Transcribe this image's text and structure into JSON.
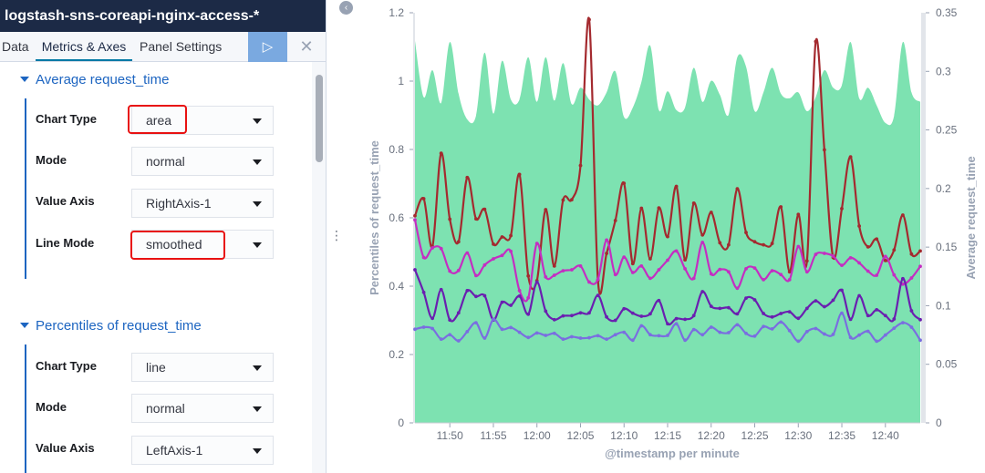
{
  "header": {
    "index_pattern": "logstash-sns-coreapi-nginx-access-*"
  },
  "tabs": {
    "data": "Data",
    "metrics_axes": "Metrics & Axes",
    "panel_settings": "Panel Settings"
  },
  "toolbar": {
    "apply_icon": "play-icon",
    "discard_icon": "close-icon",
    "apply_glyph": "▷",
    "discard_glyph": "✕"
  },
  "sections": [
    {
      "title": "Average request_time",
      "fields": [
        {
          "label": "Chart Type",
          "value": "area",
          "highlighted": true
        },
        {
          "label": "Mode",
          "value": "normal",
          "highlighted": false
        },
        {
          "label": "Value Axis",
          "value": "RightAxis-1",
          "highlighted": false
        },
        {
          "label": "Line Mode",
          "value": "smoothed",
          "highlighted": true
        }
      ]
    },
    {
      "title": "Percentiles of request_time",
      "fields": [
        {
          "label": "Chart Type",
          "value": "line",
          "highlighted": false
        },
        {
          "label": "Mode",
          "value": "normal",
          "highlighted": false
        },
        {
          "label": "Value Axis",
          "value": "LeftAxis-1",
          "highlighted": false
        }
      ]
    }
  ],
  "chart_data": {
    "type": "line",
    "xlabel": "@timestamp per minute",
    "ylabel_left": "Percentiles of request_time",
    "ylabel_right": "Average request_time",
    "categories": [
      "11:50",
      "11:55",
      "12:00",
      "12:05",
      "12:10",
      "12:15",
      "12:20",
      "12:25",
      "12:30",
      "12:35",
      "12:40"
    ],
    "ylim_left": [
      0,
      1.2
    ],
    "ylim_right": [
      0,
      0.35
    ],
    "y_ticks_left": [
      "0",
      "0.2",
      "0.4",
      "0.6",
      "0.8",
      "1",
      "1.2"
    ],
    "y_ticks_right": [
      "0",
      "0.05",
      "0.1",
      "0.15",
      "0.2",
      "0.25",
      "0.3",
      "0.35"
    ],
    "x": [
      "11:46",
      "11:47",
      "11:48",
      "11:49",
      "11:50",
      "11:51",
      "11:52",
      "11:53",
      "11:54",
      "11:55",
      "11:56",
      "11:57",
      "11:58",
      "11:59",
      "12:00",
      "12:01",
      "12:02",
      "12:03",
      "12:04",
      "12:05",
      "12:06",
      "12:07",
      "12:08",
      "12:09",
      "12:10",
      "12:11",
      "12:12",
      "12:13",
      "12:14",
      "12:15",
      "12:16",
      "12:17",
      "12:18",
      "12:19",
      "12:20",
      "12:21",
      "12:22",
      "12:23",
      "12:24",
      "12:25",
      "12:26",
      "12:27",
      "12:28",
      "12:29",
      "12:30",
      "12:31",
      "12:32",
      "12:33",
      "12:34",
      "12:35",
      "12:36",
      "12:37",
      "12:38",
      "12:39",
      "12:40",
      "12:41",
      "12:42",
      "12:43",
      "12:44"
    ],
    "series": [
      {
        "name": "Average request_time",
        "axis": "right",
        "kind": "area",
        "color": "#7de2b1",
        "values": [
          0.326,
          0.278,
          0.301,
          0.273,
          0.325,
          0.281,
          0.259,
          0.262,
          0.316,
          0.264,
          0.309,
          0.276,
          0.276,
          0.312,
          0.274,
          0.312,
          0.275,
          0.307,
          0.272,
          0.286,
          0.276,
          0.271,
          0.282,
          0.3,
          0.261,
          0.269,
          0.291,
          0.322,
          0.267,
          0.283,
          0.267,
          0.269,
          0.303,
          0.274,
          0.292,
          0.28,
          0.263,
          0.312,
          0.304,
          0.266,
          0.282,
          0.303,
          0.281,
          0.277,
          0.282,
          0.266,
          0.278,
          0.301,
          0.286,
          0.288,
          0.325,
          0.277,
          0.286,
          0.271,
          0.256,
          0.262,
          0.325,
          0.282,
          0.274
        ]
      },
      {
        "name": "",
        "axis": "left",
        "kind": "line",
        "color": "#a42a2f",
        "values": [
          0.606,
          0.656,
          0.516,
          0.789,
          0.596,
          0.53,
          0.718,
          0.597,
          0.625,
          0.523,
          0.544,
          0.548,
          0.727,
          0.43,
          0.416,
          0.624,
          0.459,
          0.652,
          0.653,
          0.753,
          1.18,
          0.417,
          0.496,
          0.592,
          0.701,
          0.466,
          0.628,
          0.48,
          0.629,
          0.545,
          0.692,
          0.477,
          0.643,
          0.55,
          0.616,
          0.527,
          0.521,
          0.685,
          0.557,
          0.53,
          0.521,
          0.525,
          0.632,
          0.442,
          0.61,
          0.474,
          1.116,
          0.799,
          0.484,
          0.627,
          0.778,
          0.576,
          0.515,
          0.538,
          0.475,
          0.506,
          0.608,
          0.494,
          0.503
        ]
      },
      {
        "name": "",
        "axis": "left",
        "kind": "line",
        "color": "#c42ec2",
        "values": [
          0.594,
          0.484,
          0.512,
          0.51,
          0.444,
          0.446,
          0.497,
          0.431,
          0.462,
          0.48,
          0.49,
          0.502,
          0.387,
          0.366,
          0.525,
          0.427,
          0.432,
          0.445,
          0.448,
          0.459,
          0.412,
          0.42,
          0.535,
          0.434,
          0.485,
          0.44,
          0.459,
          0.423,
          0.448,
          0.476,
          0.503,
          0.451,
          0.423,
          0.528,
          0.436,
          0.449,
          0.442,
          0.394,
          0.451,
          0.453,
          0.419,
          0.445,
          0.434,
          0.419,
          0.516,
          0.442,
          0.493,
          0.496,
          0.488,
          0.461,
          0.483,
          0.468,
          0.444,
          0.432,
          0.487,
          0.433,
          0.406,
          0.424,
          0.458
        ]
      },
      {
        "name": "",
        "axis": "left",
        "kind": "line",
        "color": "#6a1fb0",
        "values": [
          0.448,
          0.382,
          0.306,
          0.39,
          0.301,
          0.322,
          0.387,
          0.37,
          0.372,
          0.301,
          0.353,
          0.344,
          0.371,
          0.318,
          0.412,
          0.327,
          0.302,
          0.313,
          0.314,
          0.322,
          0.322,
          0.373,
          0.31,
          0.3,
          0.334,
          0.321,
          0.312,
          0.319,
          0.358,
          0.29,
          0.305,
          0.303,
          0.314,
          0.384,
          0.341,
          0.335,
          0.337,
          0.319,
          0.365,
          0.36,
          0.32,
          0.31,
          0.32,
          0.325,
          0.306,
          0.335,
          0.357,
          0.34,
          0.359,
          0.388,
          0.303,
          0.372,
          0.314,
          0.331,
          0.314,
          0.304,
          0.422,
          0.328,
          0.302
        ]
      },
      {
        "name": "",
        "axis": "left",
        "kind": "line",
        "color": "#7a6ee0",
        "values": [
          0.274,
          0.28,
          0.276,
          0.245,
          0.258,
          0.24,
          0.267,
          0.293,
          0.248,
          0.303,
          0.274,
          0.279,
          0.265,
          0.25,
          0.263,
          0.256,
          0.262,
          0.245,
          0.252,
          0.248,
          0.249,
          0.255,
          0.245,
          0.258,
          0.265,
          0.242,
          0.284,
          0.258,
          0.255,
          0.256,
          0.29,
          0.242,
          0.273,
          0.258,
          0.28,
          0.265,
          0.264,
          0.287,
          0.262,
          0.254,
          0.282,
          0.275,
          0.295,
          0.27,
          0.239,
          0.267,
          0.276,
          0.26,
          0.259,
          0.321,
          0.25,
          0.257,
          0.268,
          0.239,
          0.257,
          0.277,
          0.293,
          0.28,
          0.242
        ]
      }
    ]
  }
}
